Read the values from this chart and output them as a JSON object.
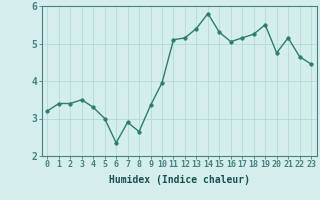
{
  "x": [
    0,
    1,
    2,
    3,
    4,
    5,
    6,
    7,
    8,
    9,
    10,
    11,
    12,
    13,
    14,
    15,
    16,
    17,
    18,
    19,
    20,
    21,
    22,
    23
  ],
  "y": [
    3.2,
    3.4,
    3.4,
    3.5,
    3.3,
    3.0,
    2.35,
    2.9,
    2.65,
    3.35,
    3.95,
    5.1,
    5.15,
    5.4,
    5.8,
    5.3,
    5.05,
    5.15,
    5.25,
    5.5,
    4.75,
    5.15,
    4.65,
    4.45
  ],
  "xlabel": "Humidex (Indice chaleur)",
  "ylim": [
    2,
    6
  ],
  "xlim": [
    -0.5,
    23.5
  ],
  "yticks": [
    2,
    3,
    4,
    5,
    6
  ],
  "xticks": [
    0,
    1,
    2,
    3,
    4,
    5,
    6,
    7,
    8,
    9,
    10,
    11,
    12,
    13,
    14,
    15,
    16,
    17,
    18,
    19,
    20,
    21,
    22,
    23
  ],
  "line_color": "#2e7d6e",
  "marker_color": "#2e7d6e",
  "bg_color": "#d4eeee",
  "grid_color": "#b8d8d8",
  "axes_color": "#4a8080",
  "tick_label_color": "#1a5050",
  "xlabel_color": "#1a5050",
  "xlabel_fontsize": 7,
  "tick_fontsize": 6,
  "ytick_fontsize": 7,
  "line_width": 1.0,
  "marker_size": 2.5
}
